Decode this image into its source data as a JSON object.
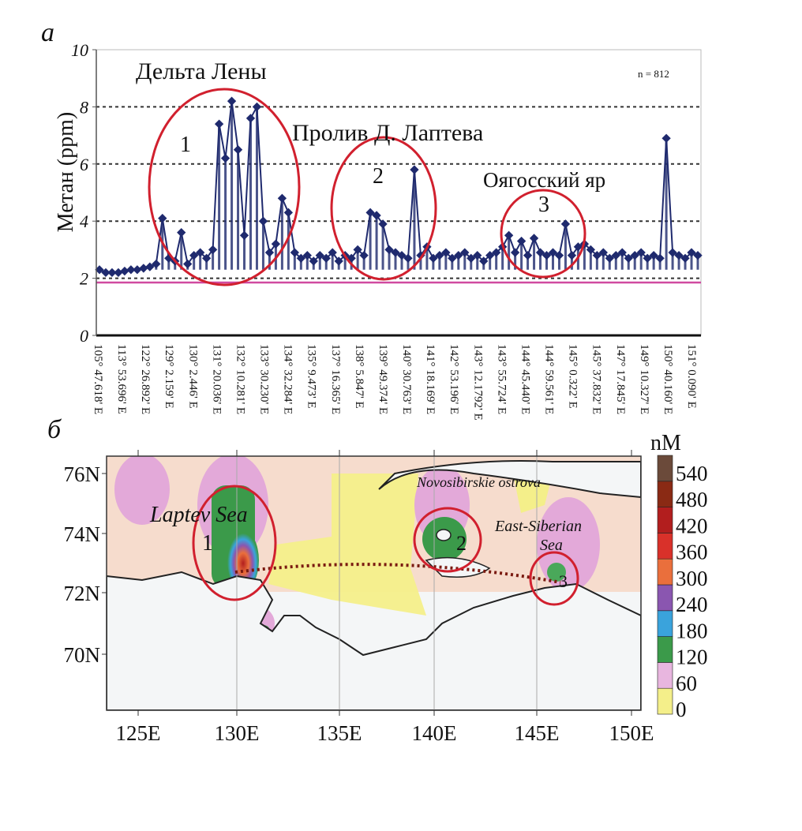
{
  "chart_data": [
    {
      "type": "line",
      "panel_label": "а",
      "title": "",
      "xlabel": "",
      "ylabel": "Метан (ppm)",
      "ylim": [
        0,
        10
      ],
      "yticks": [
        "0",
        "2",
        "4",
        "6",
        "8",
        "10"
      ],
      "grid": "dashed horizontal at 2, 4, 6, 8",
      "reference_line_ppm": 1.85,
      "n_label": "n = 812",
      "xticks": [
        "105° 47.618' E",
        "113° 53.696' E",
        "122° 26.892' E",
        "129° 2.159' E",
        "130° 2.446' E",
        "131° 20.036' E",
        "132° 10.281' E",
        "133° 30.230' E",
        "134° 32.284' E",
        "135° 9.473' E",
        "137° 16.365' E",
        "138° 5.847' E",
        "139° 49.374' E",
        "140° 30.763' E",
        "141° 18.169' E",
        "142° 53.196' E",
        "143° 12.1792' E",
        "143° 55.724' E",
        "144° 45.440' E",
        "144° 59.561' E",
        "145° 0.322' E",
        "145° 37.832' E",
        "147° 17.845' E",
        "149° 10.327' E",
        "150° 40.160' E",
        "151° 0.090' E"
      ],
      "series": [
        {
          "name": "Метан",
          "color": "#1f2a6e",
          "values": [
            2.3,
            2.2,
            2.2,
            2.2,
            2.25,
            2.3,
            2.3,
            2.35,
            2.4,
            2.5,
            4.1,
            2.7,
            2.6,
            3.6,
            2.5,
            2.8,
            2.9,
            2.7,
            3.0,
            7.4,
            6.2,
            8.2,
            6.5,
            3.5,
            7.6,
            8.0,
            4.0,
            2.9,
            3.2,
            4.8,
            4.3,
            2.9,
            2.7,
            2.8,
            2.6,
            2.8,
            2.7,
            2.9,
            2.6,
            2.8,
            2.7,
            3.0,
            2.8,
            4.3,
            4.2,
            3.9,
            3.0,
            2.9,
            2.8,
            2.7,
            5.8,
            2.8,
            3.1,
            2.7,
            2.8,
            2.9,
            2.7,
            2.8,
            2.9,
            2.7,
            2.8,
            2.6,
            2.8,
            2.9,
            3.1,
            3.5,
            2.9,
            3.3,
            2.8,
            3.4,
            2.9,
            2.8,
            2.9,
            2.8,
            3.9,
            2.8,
            3.1,
            3.2,
            3.0,
            2.8,
            2.9,
            2.7,
            2.8,
            2.9,
            2.7,
            2.8,
            2.9,
            2.7,
            2.8,
            2.7,
            6.9,
            2.9,
            2.8,
            2.7,
            2.9,
            2.8
          ]
        }
      ],
      "annotations": [
        {
          "number": "1",
          "label": "Дельта Лены"
        },
        {
          "number": "2",
          "label": "Пролив Д. Лаптева"
        },
        {
          "number": "3",
          "label": "Оягосский яр"
        }
      ]
    },
    {
      "type": "heatmap",
      "panel_label": "б",
      "yticks": [
        "76N",
        "74N",
        "72N",
        "70N"
      ],
      "xticks": [
        "125E",
        "130E",
        "135E",
        "140E",
        "145E",
        "150E"
      ],
      "colorbar": {
        "unit": "nM",
        "ticks": [
          "0",
          "60",
          "120",
          "180",
          "240",
          "300",
          "360",
          "420",
          "480",
          "540"
        ],
        "colors": [
          "#f4ef8a",
          "#e8b6df",
          "#3b9a4a",
          "#3aa3dc",
          "#8a56b0",
          "#ea6f3c",
          "#d9312a",
          "#b21e1e",
          "#8a2a14",
          "#6b4a3a"
        ]
      },
      "annotations": [
        {
          "number": "1",
          "label": "Laptev Sea"
        },
        {
          "number": "2",
          "label": "Novosibirskie ostrova"
        },
        {
          "number": "3",
          "label": "East-Siberian",
          "label2": "Sea"
        }
      ]
    }
  ]
}
